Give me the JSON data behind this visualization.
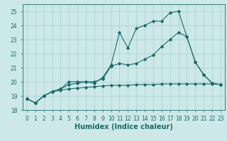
{
  "xlabel": "Humidex (Indice chaleur)",
  "background_color": "#cce8e8",
  "grid_color": "#aacfcf",
  "line_color": "#1a6b6b",
  "x": [
    0,
    1,
    2,
    3,
    4,
    5,
    6,
    7,
    8,
    9,
    10,
    11,
    12,
    13,
    14,
    15,
    16,
    17,
    18,
    19,
    20,
    21,
    22,
    23
  ],
  "line1": [
    18.8,
    18.5,
    19.0,
    19.3,
    19.5,
    20.0,
    20.0,
    20.0,
    19.9,
    20.3,
    21.2,
    23.5,
    22.4,
    23.8,
    24.0,
    24.3,
    24.3,
    24.9,
    25.0,
    23.2,
    21.4,
    20.5,
    19.9,
    19.8
  ],
  "line2": [
    18.8,
    18.5,
    19.0,
    19.3,
    19.5,
    19.8,
    19.9,
    20.0,
    20.0,
    20.2,
    21.1,
    21.3,
    21.2,
    21.3,
    21.6,
    21.9,
    22.5,
    23.0,
    23.5,
    23.2,
    21.4,
    20.5,
    19.9,
    19.8
  ],
  "line3": [
    18.8,
    18.5,
    19.0,
    19.3,
    19.4,
    19.5,
    19.55,
    19.6,
    19.65,
    19.7,
    19.75,
    19.75,
    19.75,
    19.8,
    19.8,
    19.8,
    19.85,
    19.85,
    19.85,
    19.85,
    19.85,
    19.85,
    19.85,
    19.8
  ],
  "ylim": [
    18,
    25.5
  ],
  "xlim": [
    -0.5,
    23.5
  ],
  "yticks": [
    18,
    19,
    20,
    21,
    22,
    23,
    24,
    25
  ],
  "xticks": [
    0,
    1,
    2,
    3,
    4,
    5,
    6,
    7,
    8,
    9,
    10,
    11,
    12,
    13,
    14,
    15,
    16,
    17,
    18,
    19,
    20,
    21,
    22,
    23
  ],
  "tick_fontsize": 5.5,
  "label_fontsize": 7.0
}
